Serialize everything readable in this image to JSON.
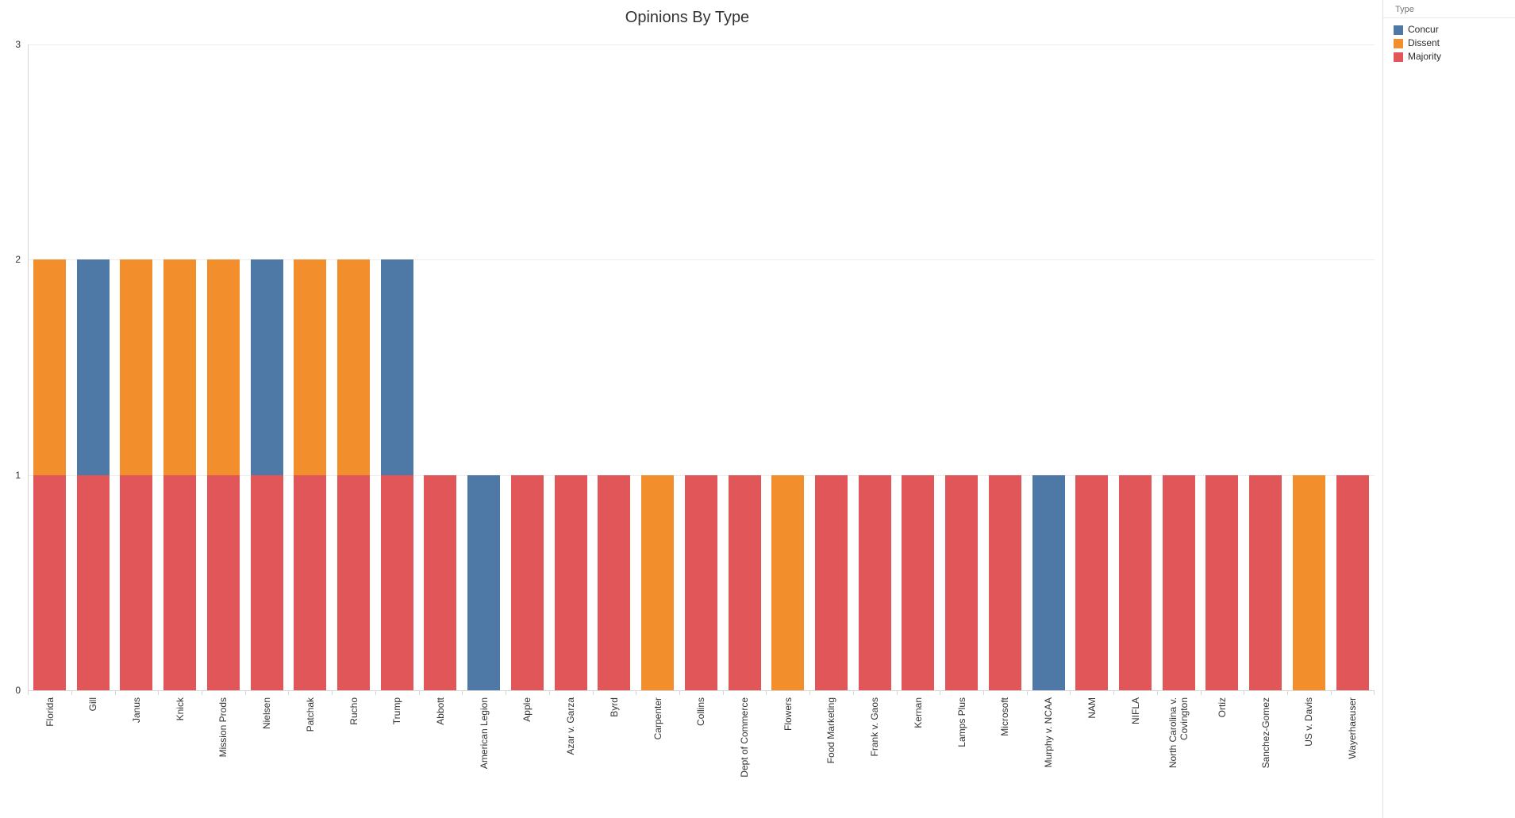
{
  "title": "Opinions By Type",
  "legend": {
    "header": "Type",
    "items": [
      {
        "label": "Concur",
        "color": "#4e79a7"
      },
      {
        "label": "Dissent",
        "color": "#f28e2b"
      },
      {
        "label": "Majority",
        "color": "#e15759"
      }
    ]
  },
  "y_axis": {
    "tick_labels": [
      "0",
      "1",
      "2",
      "3"
    ]
  },
  "chart_data": {
    "type": "bar",
    "stacked": true,
    "title": "Opinions By Type",
    "categories": [
      "Florida",
      "Gill",
      "Janus",
      "Knick",
      "Mission Prods",
      "Nielsen",
      "Patchak",
      "Rucho",
      "Trump",
      "Abbott",
      "American Legion",
      "Apple",
      "Azar v. Garza",
      "Byrd",
      "Carpenter",
      "Collins",
      "Dept of Commerce",
      "Flowers",
      "Food Marketing",
      "Frank v. Gaos",
      "Kernan",
      "Lamps Plus",
      "Microsoft",
      "Murphy v. NCAA",
      "NAM",
      "NIFLA",
      "North Carolina v. Covington",
      "Ortiz",
      "Sanchez-Gomez",
      "US v. Davis",
      "Wayerhaeuser"
    ],
    "series": [
      {
        "name": "Concur",
        "color": "#4e79a7",
        "values": [
          0,
          1,
          0,
          0,
          0,
          1,
          0,
          0,
          1,
          0,
          1,
          0,
          0,
          0,
          0,
          0,
          0,
          0,
          0,
          0,
          0,
          0,
          0,
          1,
          0,
          0,
          0,
          0,
          0,
          0,
          0
        ]
      },
      {
        "name": "Dissent",
        "color": "#f28e2b",
        "values": [
          1,
          0,
          1,
          1,
          1,
          0,
          1,
          1,
          0,
          0,
          0,
          0,
          0,
          0,
          1,
          0,
          0,
          1,
          0,
          0,
          0,
          0,
          0,
          0,
          0,
          0,
          0,
          0,
          0,
          1,
          0
        ]
      },
      {
        "name": "Majority",
        "color": "#e15759",
        "values": [
          1,
          1,
          1,
          1,
          1,
          1,
          1,
          1,
          1,
          1,
          0,
          1,
          1,
          1,
          0,
          1,
          1,
          0,
          1,
          1,
          1,
          1,
          1,
          0,
          1,
          1,
          1,
          1,
          1,
          0,
          1
        ]
      }
    ],
    "ylim": [
      0,
      3
    ],
    "yticks": [
      0,
      1,
      2,
      3
    ],
    "grid": "horizontal",
    "legend_position": "top-right"
  }
}
